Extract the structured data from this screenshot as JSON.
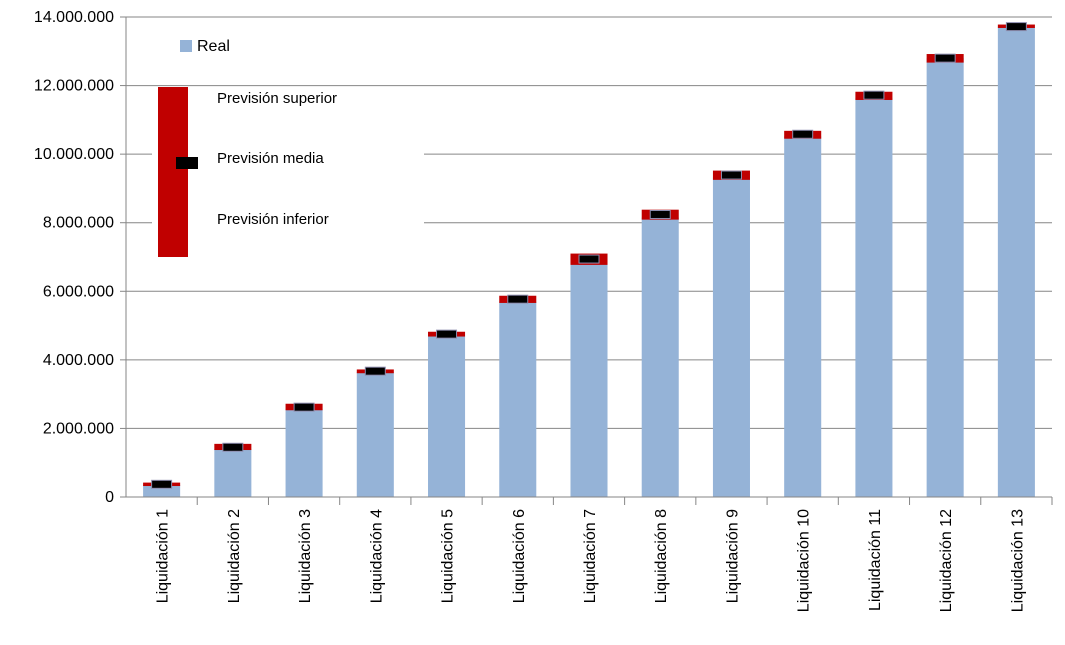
{
  "chart_data": {
    "type": "bar",
    "categories": [
      "Liquidación 1",
      "Liquidación 2",
      "Liquidación 3",
      "Liquidación 4",
      "Liquidación 5",
      "Liquidación 6",
      "Liquidación 7",
      "Liquidación 8",
      "Liquidación 9",
      "Liquidación 10",
      "Liquidación 11",
      "Liquidación 12",
      "Liquidación 13"
    ],
    "y_ticks": [
      "0",
      "2.000.000",
      "4.000.000",
      "6.000.000",
      "8.000.000",
      "10.000.000",
      "12.000.000",
      "14.000.000"
    ],
    "ylim": [
      0,
      14000000
    ],
    "grid": true,
    "legend_position": "top-left",
    "series": [
      {
        "name": "Real",
        "type": "bar",
        "color": "#95B3D7",
        "values": [
          350000,
          1400000,
          2570000,
          3640000,
          4700000,
          5700000,
          6880000,
          8150000,
          9320000,
          10520000,
          11640000,
          12800000,
          13700000
        ]
      },
      {
        "name": "Previsión superior",
        "type": "range-high",
        "color": "#C00000",
        "values": [
          420000,
          1550000,
          2720000,
          3720000,
          4820000,
          5870000,
          7100000,
          8380000,
          9520000,
          10680000,
          11820000,
          12920000,
          13780000
        ]
      },
      {
        "name": "Previsión media",
        "type": "marker",
        "color": "#000000",
        "values": [
          370000,
          1450000,
          2620000,
          3670000,
          4750000,
          5770000,
          6940000,
          8240000,
          9390000,
          10580000,
          11720000,
          12800000,
          13720000
        ]
      },
      {
        "name": "Previsión inferior",
        "type": "range-low",
        "color": "#C00000",
        "values": [
          320000,
          1370000,
          2530000,
          3610000,
          4680000,
          5660000,
          6770000,
          8090000,
          9250000,
          10450000,
          11580000,
          12670000,
          13680000
        ]
      }
    ]
  }
}
